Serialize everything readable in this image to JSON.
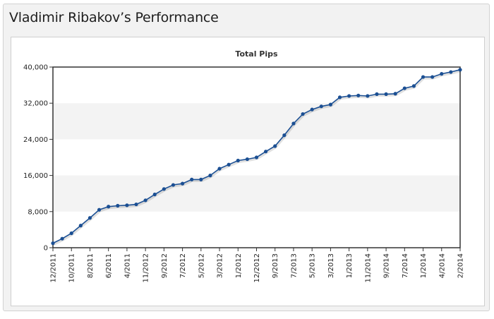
{
  "widget": {
    "title": "Vladimir Ribakov’s Performance"
  },
  "chart_data": {
    "type": "line",
    "title": "Total Pips",
    "xlabel": "",
    "ylabel": "",
    "ylim": [
      0,
      40000
    ],
    "yticks": [
      0,
      8000,
      16000,
      24000,
      32000,
      40000
    ],
    "ytick_labels": [
      "0",
      "8,000",
      "16,000",
      "24,000",
      "32,000",
      "40,000"
    ],
    "x_tick_labels": [
      "12/2011",
      "10/2011",
      "8/2011",
      "6/2011",
      "4/2011",
      "11/2012",
      "9/2012",
      "7/2012",
      "5/2012",
      "3/2012",
      "1/2012",
      "12/2012",
      "9/2013",
      "7/2013",
      "5/2013",
      "3/2013",
      "1/2013",
      "11/2014",
      "9/2014",
      "7/2014",
      "1/2014",
      "4/2014",
      "2/2014"
    ],
    "grid": true,
    "legend": "none",
    "series_color": "#1b4f93",
    "band_color": "#f3f3f3",
    "values": [
      1000,
      2000,
      3200,
      4900,
      6600,
      8400,
      9100,
      9300,
      9400,
      9600,
      10500,
      11800,
      13000,
      13900,
      14200,
      15100,
      15100,
      16000,
      17500,
      18400,
      19300,
      19600,
      20000,
      21300,
      22500,
      24900,
      27500,
      29600,
      30600,
      31300,
      31700,
      33300,
      33600,
      33700,
      33600,
      34000,
      34000,
      34100,
      35300,
      35800,
      37800,
      37800,
      38500,
      38900,
      39400
    ]
  }
}
